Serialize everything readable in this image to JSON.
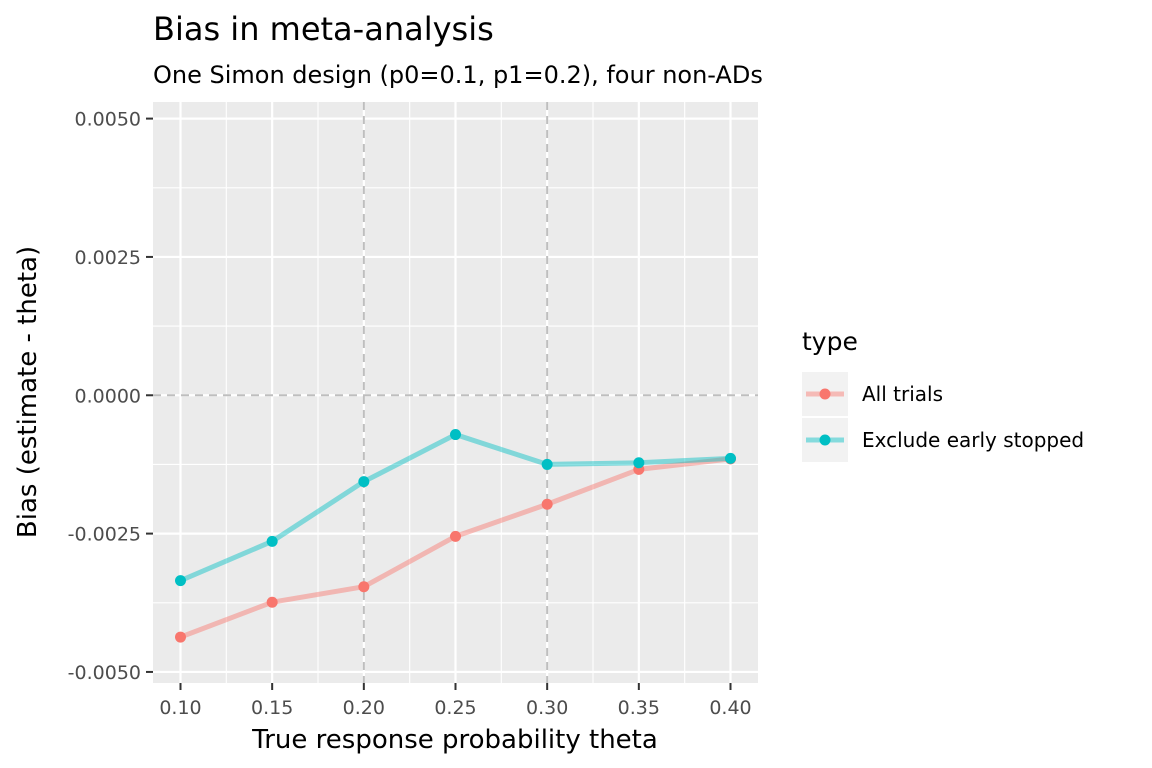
{
  "chart_data": {
    "type": "line",
    "title": "Bias in meta-analysis",
    "subtitle": "One Simon design (p0=0.1, p1=0.2), four non-ADs",
    "xlabel": "True response probability theta",
    "ylabel": "Bias (estimate - theta)",
    "x": [
      0.1,
      0.15,
      0.2,
      0.25,
      0.3,
      0.35,
      0.4
    ],
    "x_tick_labels": [
      "0.10",
      "0.15",
      "0.20",
      "0.25",
      "0.30",
      "0.35",
      "0.40"
    ],
    "y_ticks": [
      -0.005,
      -0.0025,
      0.0,
      0.0025,
      0.005
    ],
    "y_tick_labels": [
      "-0.0050",
      "-0.0025",
      "0.0000",
      "0.0025",
      "0.0050"
    ],
    "xlim": [
      0.085,
      0.415
    ],
    "ylim": [
      -0.0052,
      0.0053
    ],
    "grid": true,
    "reference_lines": {
      "vertical": [
        0.2,
        0.3
      ],
      "horizontal": [
        0.0
      ]
    },
    "legend": {
      "title": "type",
      "placement": "right"
    },
    "series": [
      {
        "name": "All trials",
        "color": "#F8766D",
        "values": [
          -0.00437,
          -0.00374,
          -0.00346,
          -0.00255,
          -0.00197,
          -0.00134,
          -0.00115
        ]
      },
      {
        "name": "Exclude early stopped",
        "color": "#00BFC4",
        "values": [
          -0.00335,
          -0.00264,
          -0.00156,
          -0.00071,
          -0.00125,
          -0.00122,
          -0.00114
        ]
      }
    ]
  }
}
